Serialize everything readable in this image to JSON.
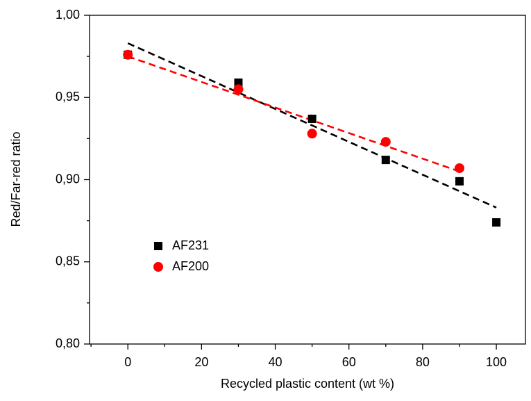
{
  "chart_data": {
    "type": "scatter",
    "x_label": "Recycled plastic content (wt %)",
    "y_label": "Red/Far-red ratio",
    "xlim": [
      -10.4,
      107.9
    ],
    "ylim": [
      0.8,
      1.0
    ],
    "xticks": [
      0,
      20,
      40,
      60,
      80,
      100
    ],
    "xminorticks": [
      -10,
      10,
      30,
      50,
      70,
      90
    ],
    "yticks": [
      {
        "value": 0.8,
        "label": "0,80"
      },
      {
        "value": 0.85,
        "label": "0,85"
      },
      {
        "value": 0.9,
        "label": "0,90"
      },
      {
        "value": 0.95,
        "label": "0,95"
      },
      {
        "value": 1.0,
        "label": "1,00"
      }
    ],
    "yminorticks": [
      0.825,
      0.875,
      0.925,
      0.975
    ],
    "series": [
      {
        "name": "AF231",
        "color": "#000000",
        "marker": "square",
        "x": [
          0,
          30,
          50,
          70,
          90,
          100
        ],
        "values": [
          0.976,
          0.959,
          0.937,
          0.912,
          0.899,
          0.874
        ]
      },
      {
        "name": "AF200",
        "color": "#ff0000",
        "marker": "circle",
        "x": [
          0,
          30,
          50,
          70,
          90
        ],
        "values": [
          0.976,
          0.955,
          0.928,
          0.923,
          0.907
        ]
      }
    ],
    "fits": [
      {
        "color": "#000000",
        "x": [
          0,
          100
        ],
        "values": [
          0.983,
          0.883
        ]
      },
      {
        "color": "#ff0000",
        "x": [
          0,
          90
        ],
        "values": [
          0.975,
          0.905
        ]
      }
    ]
  }
}
